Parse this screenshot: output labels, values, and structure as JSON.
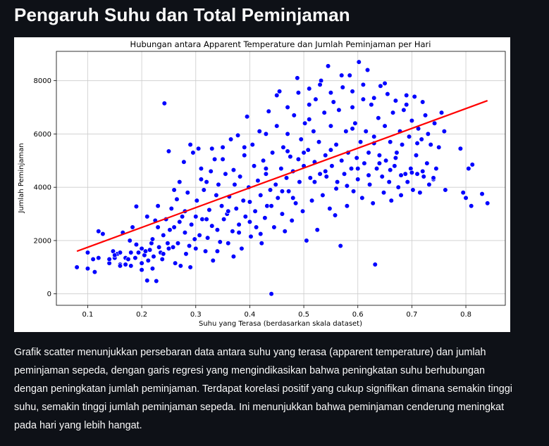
{
  "header": {
    "title": "Pengaruh Suhu dan Total Peminjaman"
  },
  "description": "Grafik scatter menunjukkan persebaran data antara suhu yang terasa (apparent temperature) dan jumlah peminjaman sepeda, dengan garis regresi yang mengindikasikan bahwa peningkatan suhu berhubungan dengan peningkatan jumlah peminjaman. Terdapat korelasi positif yang cukup signifikan dimana semakin tinggi suhu, semakin tinggi jumlah peminjaman sepeda. Ini menunjukkan bahwa peminjaman cenderung meningkat pada hari yang lebih hangat.",
  "chart_data": {
    "type": "scatter",
    "title": "Hubungan antara Apparent Temperature dan Jumlah Peminjaman per Hari",
    "xlabel": "Suhu yang Terasa (berdasarkan skala dataset)",
    "ylabel": "Jumlah Peminjaman",
    "xlim": [
      0.042,
      0.873
    ],
    "ylim": [
      -430,
      9100
    ],
    "xticks": [
      0.1,
      0.2,
      0.3,
      0.4,
      0.5,
      0.6,
      0.7,
      0.8
    ],
    "xtick_labels": [
      "0.1",
      "0.2",
      "0.3",
      "0.4",
      "0.5",
      "0.6",
      "0.7",
      "0.8"
    ],
    "yticks": [
      0,
      2000,
      4000,
      6000,
      8000
    ],
    "ytick_labels": [
      "0",
      "2000",
      "4000",
      "6000",
      "8000"
    ],
    "grid": true,
    "point_color": "#0000ff",
    "point_edge": "#ffffff",
    "regression_line": {
      "x": [
        0.08,
        0.84
      ],
      "y": [
        1600,
        7250
      ],
      "color": "#ff0000"
    },
    "points": [
      [
        0.08,
        1000
      ],
      [
        0.1,
        950
      ],
      [
        0.1,
        1550
      ],
      [
        0.11,
        1300
      ],
      [
        0.113,
        820
      ],
      [
        0.12,
        1350
      ],
      [
        0.12,
        2350
      ],
      [
        0.128,
        2250
      ],
      [
        0.14,
        1150
      ],
      [
        0.147,
        1600
      ],
      [
        0.15,
        1350
      ],
      [
        0.155,
        1500
      ],
      [
        0.16,
        1550
      ],
      [
        0.16,
        1100
      ],
      [
        0.165,
        2300
      ],
      [
        0.17,
        1350
      ],
      [
        0.175,
        1300
      ],
      [
        0.178,
        2000
      ],
      [
        0.18,
        1050
      ],
      [
        0.18,
        1550
      ],
      [
        0.183,
        2500
      ],
      [
        0.188,
        1350
      ],
      [
        0.19,
        3280
      ],
      [
        0.194,
        1550
      ],
      [
        0.2,
        1700
      ],
      [
        0.2,
        1150
      ],
      [
        0.205,
        1450
      ],
      [
        0.207,
        1600
      ],
      [
        0.21,
        500
      ],
      [
        0.212,
        1250
      ],
      [
        0.215,
        1650
      ],
      [
        0.218,
        1900
      ],
      [
        0.22,
        950
      ],
      [
        0.222,
        1400
      ],
      [
        0.225,
        2750
      ],
      [
        0.227,
        480
      ],
      [
        0.23,
        3300
      ],
      [
        0.232,
        1750
      ],
      [
        0.235,
        1550
      ],
      [
        0.238,
        1300
      ],
      [
        0.24,
        2200
      ],
      [
        0.242,
        7150
      ],
      [
        0.245,
        2800
      ],
      [
        0.248,
        1900
      ],
      [
        0.25,
        1700
      ],
      [
        0.252,
        2400
      ],
      [
        0.255,
        3200
      ],
      [
        0.258,
        1750
      ],
      [
        0.26,
        2500
      ],
      [
        0.262,
        1150
      ],
      [
        0.265,
        3550
      ],
      [
        0.267,
        1900
      ],
      [
        0.27,
        2700
      ],
      [
        0.272,
        1050
      ],
      [
        0.275,
        2900
      ],
      [
        0.278,
        4950
      ],
      [
        0.28,
        2300
      ],
      [
        0.282,
        1500
      ],
      [
        0.285,
        3800
      ],
      [
        0.288,
        1800
      ],
      [
        0.29,
        1000
      ],
      [
        0.292,
        2600
      ],
      [
        0.295,
        5300
      ],
      [
        0.298,
        2050
      ],
      [
        0.3,
        1700
      ],
      [
        0.302,
        3500
      ],
      [
        0.305,
        5450
      ],
      [
        0.307,
        2200
      ],
      [
        0.31,
        4300
      ],
      [
        0.312,
        2800
      ],
      [
        0.315,
        3900
      ],
      [
        0.318,
        1600
      ],
      [
        0.32,
        4200
      ],
      [
        0.322,
        2100
      ],
      [
        0.325,
        3150
      ],
      [
        0.328,
        4600
      ],
      [
        0.33,
        2550
      ],
      [
        0.332,
        1250
      ],
      [
        0.335,
        5050
      ],
      [
        0.338,
        3700
      ],
      [
        0.34,
        2400
      ],
      [
        0.342,
        4100
      ],
      [
        0.345,
        1950
      ],
      [
        0.348,
        3300
      ],
      [
        0.35,
        5500
      ],
      [
        0.352,
        2800
      ],
      [
        0.355,
        4500
      ],
      [
        0.358,
        3000
      ],
      [
        0.36,
        1900
      ],
      [
        0.362,
        3650
      ],
      [
        0.365,
        5800
      ],
      [
        0.368,
        2350
      ],
      [
        0.37,
        1400
      ],
      [
        0.372,
        4100
      ],
      [
        0.375,
        3200
      ],
      [
        0.378,
        5950
      ],
      [
        0.38,
        2600
      ],
      [
        0.382,
        4400
      ],
      [
        0.385,
        1700
      ],
      [
        0.388,
        3500
      ],
      [
        0.39,
        5200
      ],
      [
        0.392,
        2900
      ],
      [
        0.395,
        6650
      ],
      [
        0.398,
        4000
      ],
      [
        0.4,
        3450
      ],
      [
        0.402,
        2150
      ],
      [
        0.405,
        5600
      ],
      [
        0.408,
        4800
      ],
      [
        0.41,
        3100
      ],
      [
        0.412,
        2500
      ],
      [
        0.415,
        4250
      ],
      [
        0.418,
        6100
      ],
      [
        0.42,
        3700
      ],
      [
        0.422,
        1900
      ],
      [
        0.425,
        5000
      ],
      [
        0.428,
        2850
      ],
      [
        0.43,
        4500
      ],
      [
        0.432,
        3300
      ],
      [
        0.435,
        6850
      ],
      [
        0.438,
        3900
      ],
      [
        0.44,
        0
      ],
      [
        0.442,
        5300
      ],
      [
        0.445,
        2500
      ],
      [
        0.448,
        4100
      ],
      [
        0.45,
        6300
      ],
      [
        0.452,
        3600
      ],
      [
        0.455,
        7600
      ],
      [
        0.458,
        4700
      ],
      [
        0.46,
        3000
      ],
      [
        0.462,
        5500
      ],
      [
        0.465,
        2350
      ],
      [
        0.468,
        4350
      ],
      [
        0.47,
        6000
      ],
      [
        0.472,
        3850
      ],
      [
        0.475,
        5150
      ],
      [
        0.478,
        2750
      ],
      [
        0.48,
        4600
      ],
      [
        0.482,
        6700
      ],
      [
        0.485,
        3400
      ],
      [
        0.488,
        8100
      ],
      [
        0.49,
        5050
      ],
      [
        0.492,
        4200
      ],
      [
        0.495,
        5800
      ],
      [
        0.498,
        3100
      ],
      [
        0.5,
        4800
      ],
      [
        0.502,
        6400
      ],
      [
        0.505,
        2000
      ],
      [
        0.508,
        5400
      ],
      [
        0.51,
        7700
      ],
      [
        0.512,
        4350
      ],
      [
        0.515,
        3500
      ],
      [
        0.518,
        6100
      ],
      [
        0.52,
        4950
      ],
      [
        0.522,
        7300
      ],
      [
        0.525,
        2400
      ],
      [
        0.528,
        5700
      ],
      [
        0.53,
        4500
      ],
      [
        0.532,
        8000
      ],
      [
        0.535,
        3700
      ],
      [
        0.538,
        6800
      ],
      [
        0.54,
        5200
      ],
      [
        0.542,
        4400
      ],
      [
        0.545,
        8550
      ],
      [
        0.548,
        3200
      ],
      [
        0.55,
        6300
      ],
      [
        0.552,
        4800
      ],
      [
        0.555,
        7200
      ],
      [
        0.558,
        2950
      ],
      [
        0.56,
        5600
      ],
      [
        0.562,
        4200
      ],
      [
        0.565,
        6900
      ],
      [
        0.568,
        1800
      ],
      [
        0.57,
        5000
      ],
      [
        0.572,
        7750
      ],
      [
        0.575,
        4500
      ],
      [
        0.578,
        6100
      ],
      [
        0.58,
        3300
      ],
      [
        0.582,
        5300
      ],
      [
        0.585,
        8200
      ],
      [
        0.588,
        4700
      ],
      [
        0.59,
        7000
      ],
      [
        0.592,
        3850
      ],
      [
        0.595,
        6400
      ],
      [
        0.598,
        5100
      ],
      [
        0.6,
        4300
      ],
      [
        0.602,
        8700
      ],
      [
        0.605,
        5700
      ],
      [
        0.608,
        3600
      ],
      [
        0.61,
        7300
      ],
      [
        0.612,
        4900
      ],
      [
        0.615,
        6100
      ],
      [
        0.618,
        8400
      ],
      [
        0.62,
        5300
      ],
      [
        0.622,
        4100
      ],
      [
        0.625,
        7100
      ],
      [
        0.628,
        3400
      ],
      [
        0.63,
        5900
      ],
      [
        0.632,
        1100
      ],
      [
        0.635,
        4700
      ],
      [
        0.638,
        6600
      ],
      [
        0.64,
        5200
      ],
      [
        0.642,
        7800
      ],
      [
        0.645,
        4400
      ],
      [
        0.648,
        3800
      ],
      [
        0.65,
        6300
      ],
      [
        0.652,
        5000
      ],
      [
        0.655,
        7500
      ],
      [
        0.658,
        4200
      ],
      [
        0.66,
        5700
      ],
      [
        0.662,
        3500
      ],
      [
        0.665,
        6800
      ],
      [
        0.668,
        4800
      ],
      [
        0.67,
        7250
      ],
      [
        0.672,
        5300
      ],
      [
        0.675,
        4000
      ],
      [
        0.678,
        6100
      ],
      [
        0.68,
        3700
      ],
      [
        0.682,
        5600
      ],
      [
        0.685,
        6900
      ],
      [
        0.688,
        4500
      ],
      [
        0.69,
        7100
      ],
      [
        0.692,
        4200
      ],
      [
        0.695,
        5900
      ],
      [
        0.698,
        4700
      ],
      [
        0.7,
        6500
      ],
      [
        0.702,
        3900
      ],
      [
        0.705,
        7400
      ],
      [
        0.708,
        5200
      ],
      [
        0.71,
        4500
      ],
      [
        0.712,
        6200
      ],
      [
        0.715,
        3800
      ],
      [
        0.718,
        5800
      ],
      [
        0.72,
        7200
      ],
      [
        0.722,
        4400
      ],
      [
        0.725,
        6700
      ],
      [
        0.728,
        4900
      ],
      [
        0.73,
        6000
      ],
      [
        0.732,
        4100
      ],
      [
        0.735,
        5600
      ],
      [
        0.74,
        4300
      ],
      [
        0.742,
        6400
      ],
      [
        0.745,
        4700
      ],
      [
        0.75,
        5500
      ],
      [
        0.755,
        6800
      ],
      [
        0.76,
        6100
      ],
      [
        0.762,
        3900
      ],
      [
        0.79,
        5450
      ],
      [
        0.795,
        3800
      ],
      [
        0.8,
        3600
      ],
      [
        0.805,
        4700
      ],
      [
        0.81,
        3300
      ],
      [
        0.812,
        4850
      ],
      [
        0.83,
        3750
      ],
      [
        0.84,
        3400
      ],
      [
        0.14,
        1300
      ],
      [
        0.22,
        2050
      ],
      [
        0.26,
        3900
      ],
      [
        0.32,
        2800
      ],
      [
        0.36,
        3100
      ],
      [
        0.42,
        2250
      ],
      [
        0.46,
        3850
      ],
      [
        0.5,
        5300
      ],
      [
        0.54,
        4600
      ],
      [
        0.58,
        4050
      ],
      [
        0.6,
        4700
      ],
      [
        0.62,
        4450
      ],
      [
        0.64,
        4900
      ],
      [
        0.66,
        4650
      ],
      [
        0.68,
        4450
      ],
      [
        0.7,
        4550
      ],
      [
        0.72,
        4600
      ],
      [
        0.74,
        4350
      ],
      [
        0.56,
        3950
      ],
      [
        0.52,
        4200
      ],
      [
        0.48,
        3600
      ],
      [
        0.44,
        3300
      ],
      [
        0.4,
        2700
      ],
      [
        0.38,
        2300
      ],
      [
        0.34,
        1600
      ],
      [
        0.3,
        2900
      ],
      [
        0.28,
        3100
      ],
      [
        0.24,
        1500
      ],
      [
        0.2,
        900
      ],
      [
        0.16,
        1050
      ],
      [
        0.27,
        4200
      ],
      [
        0.33,
        5450
      ],
      [
        0.37,
        4650
      ],
      [
        0.43,
        4700
      ],
      [
        0.47,
        5350
      ],
      [
        0.51,
        6550
      ],
      [
        0.55,
        5400
      ],
      [
        0.59,
        6200
      ],
      [
        0.63,
        5650
      ],
      [
        0.67,
        5100
      ],
      [
        0.71,
        5650
      ],
      [
        0.63,
        7350
      ],
      [
        0.59,
        7600
      ],
      [
        0.55,
        7550
      ],
      [
        0.51,
        7100
      ],
      [
        0.47,
        7000
      ],
      [
        0.43,
        6000
      ],
      [
        0.39,
        5500
      ],
      [
        0.35,
        5050
      ],
      [
        0.31,
        4700
      ],
      [
        0.29,
        5600
      ],
      [
        0.25,
        5350
      ],
      [
        0.23,
        2500
      ],
      [
        0.21,
        2900
      ],
      [
        0.19,
        1850
      ],
      [
        0.17,
        1100
      ],
      [
        0.15,
        1450
      ],
      [
        0.45,
        7450
      ],
      [
        0.49,
        7550
      ],
      [
        0.53,
        7850
      ],
      [
        0.57,
        8200
      ],
      [
        0.61,
        7850
      ],
      [
        0.65,
        7900
      ],
      [
        0.69,
        7450
      ]
    ]
  }
}
